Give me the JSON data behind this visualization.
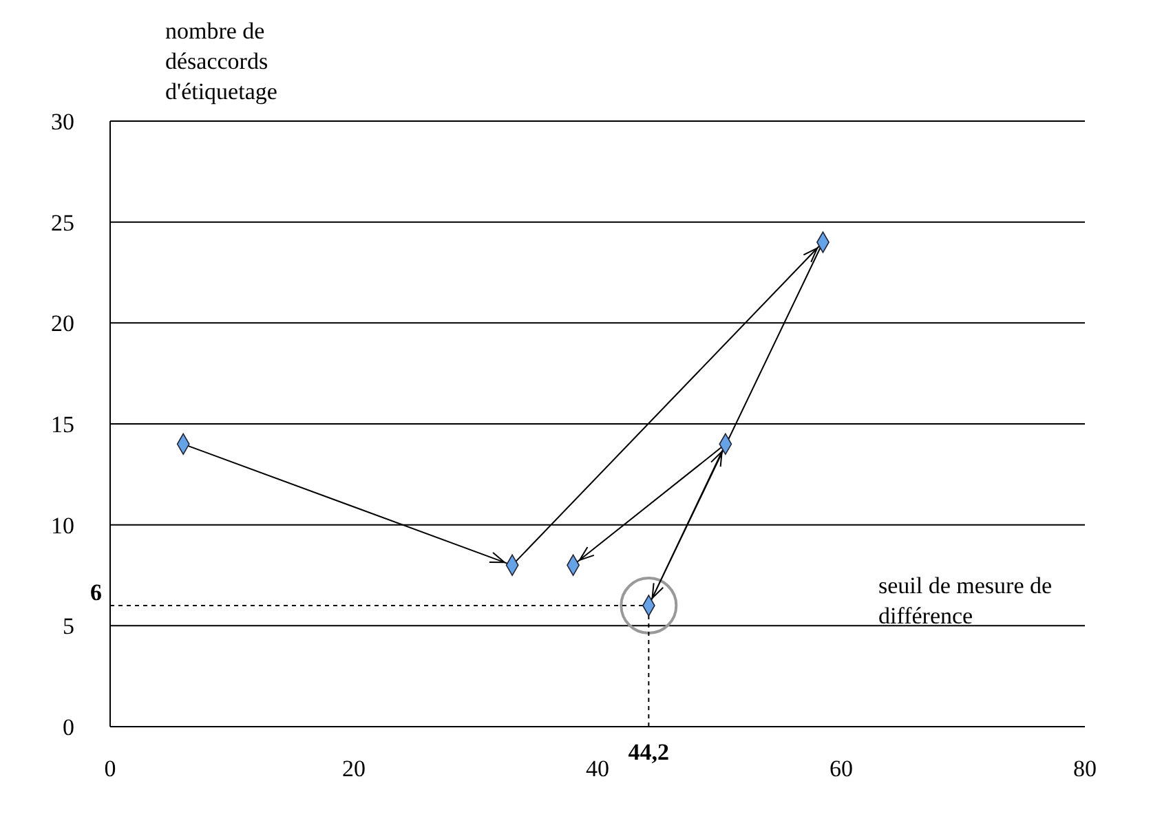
{
  "chart_data": {
    "type": "line",
    "xlabel": "seuil de mesure de différence",
    "ylabel": "nombre de désaccords d'étiquetage",
    "x": [
      6,
      33,
      58.5,
      44.2,
      50.5,
      38
    ],
    "series": [
      {
        "color": "#66a3e6",
        "values": [
          14,
          8,
          24,
          6,
          14,
          8
        ]
      }
    ],
    "xlim": [
      0,
      80
    ],
    "xticks": [
      0,
      20,
      40,
      60,
      80
    ],
    "ylim": [
      0,
      30
    ],
    "yticks": [
      0,
      5,
      10,
      15,
      20,
      25,
      30
    ],
    "grid": "y",
    "marker": "diamond",
    "ref_lines": [
      {
        "axis": "y",
        "value": 6,
        "label": "6",
        "line_style": "dashed"
      },
      {
        "axis": "x",
        "value": 44.2,
        "label": "44,2",
        "line_style": "dashed"
      }
    ]
  }
}
